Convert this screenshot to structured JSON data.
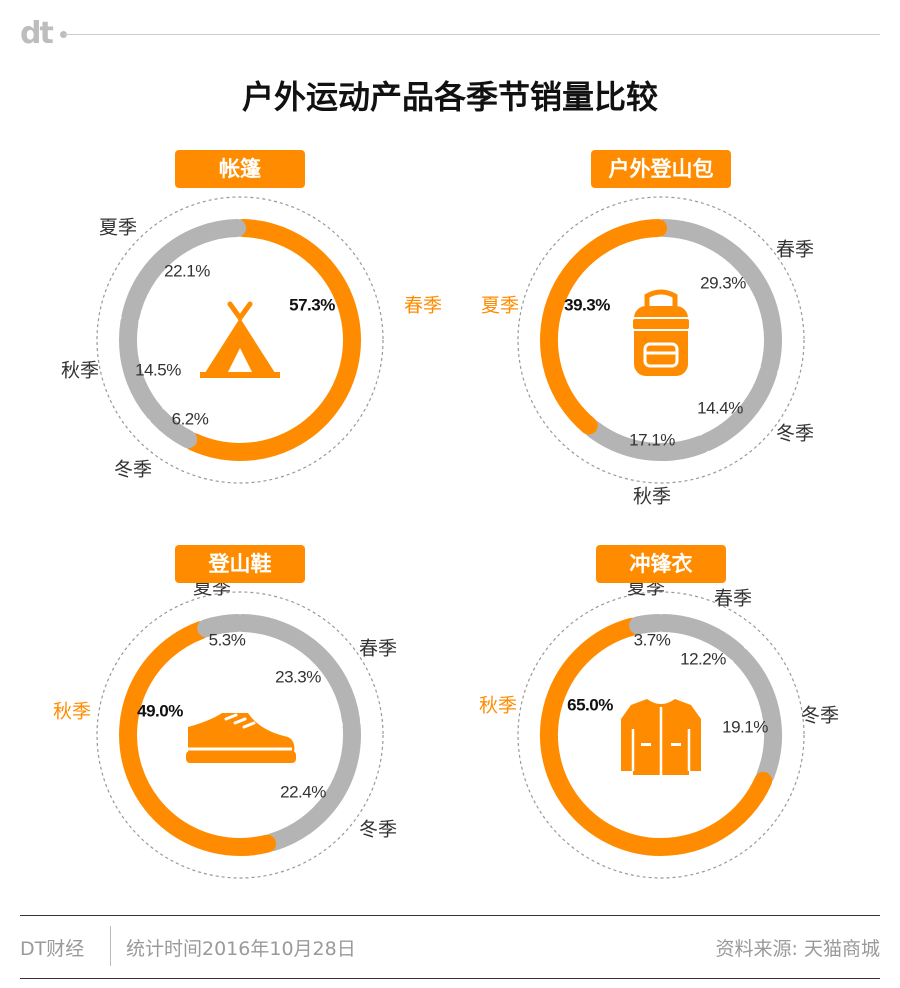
{
  "logo": "dt",
  "title": "户外运动产品各季节销量比较",
  "colors": {
    "highlight": "#FF8C00",
    "base": "#B4B4B4",
    "icon": "#FF8C00"
  },
  "chart_data": [
    {
      "type": "donut",
      "title": "帐篷",
      "icon": "tent-icon",
      "series": [
        {
          "name": "春季",
          "value": 57.3,
          "label": "57.3%"
        },
        {
          "name": "冬季",
          "value": 6.2,
          "label": "6.2%"
        },
        {
          "name": "秋季",
          "value": 14.5,
          "label": "14.5%"
        },
        {
          "name": "夏季",
          "value": 22.1,
          "label": "22.1%"
        }
      ],
      "highlight": "春季"
    },
    {
      "type": "donut",
      "title": "户外登山包",
      "icon": "backpack-icon",
      "series": [
        {
          "name": "春季",
          "value": 29.3,
          "label": "29.3%"
        },
        {
          "name": "冬季",
          "value": 14.4,
          "label": "14.4%"
        },
        {
          "name": "秋季",
          "value": 17.1,
          "label": "17.1%"
        },
        {
          "name": "夏季",
          "value": 39.3,
          "label": "39.3%"
        }
      ],
      "highlight": "夏季"
    },
    {
      "type": "donut",
      "title": "登山鞋",
      "icon": "shoe-icon",
      "series": [
        {
          "name": "春季",
          "value": 23.3,
          "label": "23.3%"
        },
        {
          "name": "冬季",
          "value": 22.4,
          "label": "22.4%"
        },
        {
          "name": "秋季",
          "value": 49.0,
          "label": "49.0%"
        },
        {
          "name": "夏季",
          "value": 5.3,
          "label": "5.3%"
        }
      ],
      "highlight": "秋季"
    },
    {
      "type": "donut",
      "title": "冲锋衣",
      "icon": "jacket-icon",
      "series": [
        {
          "name": "春季",
          "value": 12.2,
          "label": "12.2%"
        },
        {
          "name": "冬季",
          "value": 19.1,
          "label": "19.1%"
        },
        {
          "name": "秋季",
          "value": 65.0,
          "label": "65.0%"
        },
        {
          "name": "夏季",
          "value": 3.7,
          "label": "3.7%"
        }
      ],
      "highlight": "秋季"
    }
  ],
  "footer": {
    "brand": "DT财经",
    "date": "统计时间2016年10月28日",
    "source": "资料来源: 天猫商城"
  }
}
